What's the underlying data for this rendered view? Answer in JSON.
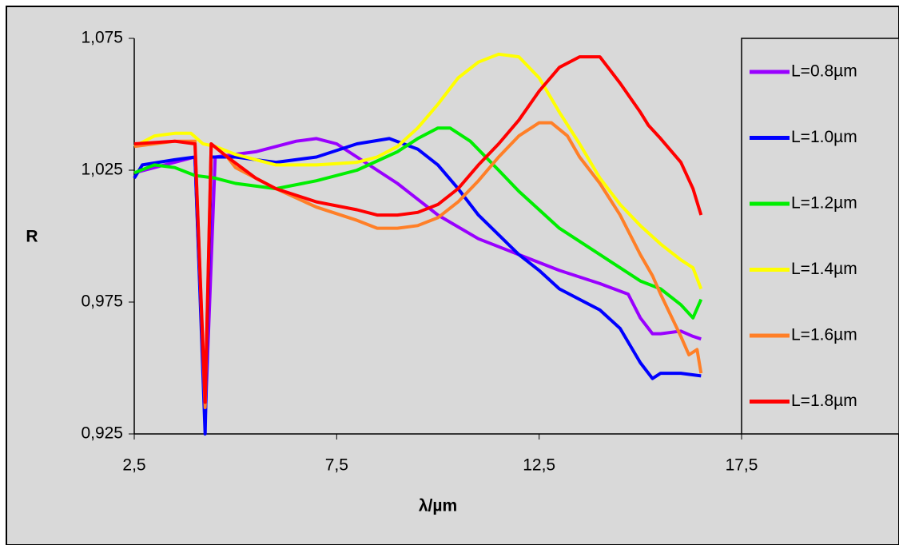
{
  "chart_data": {
    "type": "line",
    "x_label": "λ/µm",
    "y_label": "R",
    "xlim": [
      2.5,
      17.5
    ],
    "xticks": [
      {
        "value": 2.5,
        "label": "2,5"
      },
      {
        "value": 7.5,
        "label": "7,5"
      },
      {
        "value": 12.5,
        "label": "12,5"
      },
      {
        "value": 17.5,
        "label": "17,5"
      }
    ],
    "ylim": [
      0.925,
      1.075
    ],
    "yticks": [
      {
        "value": 0.925,
        "label": "0,925"
      },
      {
        "value": 0.975,
        "label": "0,975"
      },
      {
        "value": 1.025,
        "label": "1,025"
      },
      {
        "value": 1.075,
        "label": "1,075"
      }
    ],
    "grid": false,
    "legend": "right",
    "series": [
      {
        "name": "L=0.8µm",
        "color": "#9900ff",
        "x": [
          2.5,
          3.0,
          3.5,
          4.0,
          4.25,
          4.5,
          5.5,
          6.5,
          7.0,
          7.5,
          8.0,
          9.0,
          10.0,
          11.0,
          12.0,
          13.0,
          14.0,
          14.7,
          15.0,
          15.3,
          15.5,
          16.0,
          16.3,
          16.5
        ],
        "values": [
          1.024,
          1.026,
          1.028,
          1.03,
          0.93,
          1.03,
          1.032,
          1.036,
          1.037,
          1.035,
          1.03,
          1.02,
          1.008,
          0.999,
          0.993,
          0.987,
          0.982,
          0.978,
          0.969,
          0.963,
          0.963,
          0.964,
          0.962,
          0.961
        ]
      },
      {
        "name": "L=1.0µm",
        "color": "#0000ff",
        "x": [
          2.5,
          2.7,
          3.5,
          4.0,
          4.25,
          4.4,
          5.0,
          5.5,
          6.0,
          7.0,
          8.0,
          8.8,
          9.5,
          10.0,
          10.5,
          11.0,
          12.0,
          12.5,
          13.0,
          14.0,
          14.5,
          15.0,
          15.3,
          15.5,
          16.0,
          16.5
        ],
        "values": [
          1.022,
          1.027,
          1.029,
          1.03,
          0.925,
          1.03,
          1.03,
          1.029,
          1.028,
          1.03,
          1.035,
          1.037,
          1.033,
          1.027,
          1.018,
          1.008,
          0.993,
          0.987,
          0.98,
          0.972,
          0.965,
          0.952,
          0.946,
          0.948,
          0.948,
          0.947
        ]
      },
      {
        "name": "L=1.2µm",
        "color": "#00ee00",
        "x": [
          2.5,
          3.0,
          3.5,
          4.0,
          4.5,
          5.0,
          6.0,
          7.0,
          8.0,
          9.0,
          9.5,
          10.0,
          10.3,
          10.8,
          11.5,
          12.0,
          12.5,
          13.0,
          14.0,
          14.5,
          15.0,
          15.5,
          16.0,
          16.3,
          16.5
        ],
        "values": [
          1.024,
          1.027,
          1.026,
          1.023,
          1.022,
          1.02,
          1.018,
          1.021,
          1.025,
          1.032,
          1.037,
          1.041,
          1.041,
          1.036,
          1.025,
          1.017,
          1.01,
          1.003,
          0.993,
          0.988,
          0.983,
          0.98,
          0.974,
          0.969,
          0.976
        ]
      },
      {
        "name": "L=1.4µm",
        "color": "#ffff00",
        "x": [
          2.5,
          3.0,
          3.5,
          3.9,
          4.2,
          4.5,
          5.0,
          5.5,
          6.0,
          7.0,
          8.0,
          8.5,
          9.0,
          9.5,
          10.0,
          10.5,
          11.0,
          11.5,
          12.0,
          12.5,
          13.0,
          13.5,
          14.0,
          14.5,
          15.0,
          15.5,
          16.0,
          16.3,
          16.5
        ],
        "values": [
          1.034,
          1.038,
          1.039,
          1.039,
          1.035,
          1.034,
          1.031,
          1.029,
          1.027,
          1.027,
          1.028,
          1.03,
          1.034,
          1.041,
          1.05,
          1.06,
          1.066,
          1.069,
          1.068,
          1.06,
          1.047,
          1.035,
          1.022,
          1.012,
          1.004,
          0.997,
          0.991,
          0.988,
          0.98
        ]
      },
      {
        "name": "L=1.6µm",
        "color": "#ff7f27",
        "x": [
          2.5,
          3.5,
          4.0,
          4.25,
          4.4,
          4.8,
          5.0,
          6.0,
          7.0,
          8.0,
          8.5,
          9.0,
          9.5,
          10.0,
          10.5,
          11.0,
          11.5,
          12.0,
          12.5,
          12.8,
          13.2,
          13.5,
          14.0,
          14.5,
          15.0,
          15.3,
          15.5,
          16.0,
          16.2,
          16.4,
          16.5
        ],
        "values": [
          1.034,
          1.036,
          1.036,
          0.935,
          1.035,
          1.03,
          1.026,
          1.018,
          1.011,
          1.006,
          1.003,
          1.003,
          1.004,
          1.007,
          1.013,
          1.021,
          1.03,
          1.038,
          1.043,
          1.043,
          1.038,
          1.03,
          1.02,
          1.008,
          0.993,
          0.985,
          0.978,
          0.962,
          0.955,
          0.957,
          0.948
        ]
      },
      {
        "name": "L=1.8µm",
        "color": "#ff0000",
        "x": [
          2.5,
          3.5,
          4.0,
          4.25,
          4.4,
          4.8,
          5.5,
          6.0,
          7.0,
          8.0,
          8.5,
          9.0,
          9.5,
          10.0,
          10.5,
          11.0,
          11.5,
          12.0,
          12.5,
          13.0,
          13.5,
          14.0,
          14.5,
          15.0,
          15.2,
          15.5,
          16.0,
          16.3,
          16.5
        ],
        "values": [
          1.035,
          1.036,
          1.035,
          0.937,
          1.035,
          1.03,
          1.022,
          1.018,
          1.013,
          1.01,
          1.008,
          1.008,
          1.009,
          1.012,
          1.018,
          1.027,
          1.035,
          1.044,
          1.055,
          1.064,
          1.068,
          1.068,
          1.058,
          1.047,
          1.042,
          1.037,
          1.028,
          1.018,
          1.008
        ]
      }
    ]
  }
}
